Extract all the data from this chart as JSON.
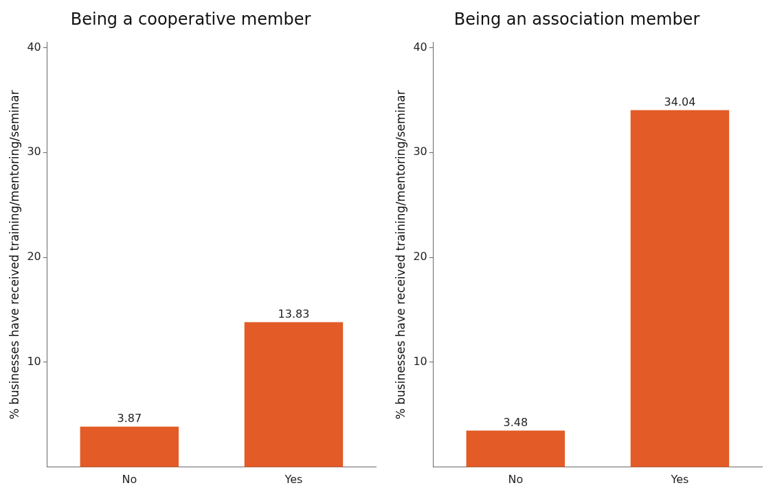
{
  "chart_data": [
    {
      "type": "bar",
      "title": "Being a cooperative member",
      "ylabel": "% businesses have received training/mentoring/seminar",
      "categories": [
        "No",
        "Yes"
      ],
      "values": [
        3.87,
        13.83
      ],
      "color": "#e35b26",
      "ylim": [
        0,
        40.5
      ],
      "yticks": [
        10,
        20,
        30,
        40
      ],
      "grid": false,
      "legend": false,
      "data_labels": true
    },
    {
      "type": "bar",
      "title": "Being an association member",
      "ylabel": "% businesses have received training/mentoring/seminar",
      "categories": [
        "No",
        "Yes"
      ],
      "values": [
        3.48,
        34.04
      ],
      "color": "#e35b26",
      "ylim": [
        0,
        40.5
      ],
      "yticks": [
        10,
        20,
        30,
        40
      ],
      "grid": false,
      "legend": false,
      "data_labels": true
    }
  ]
}
